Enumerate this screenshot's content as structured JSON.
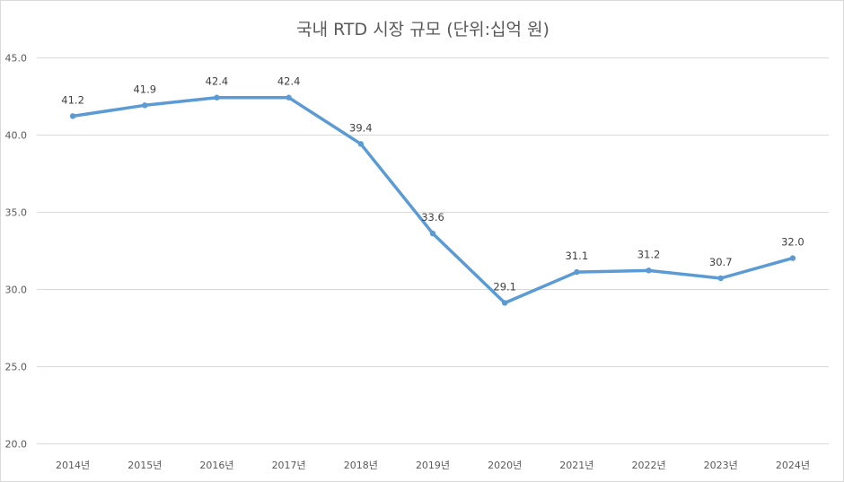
{
  "chart_data": {
    "type": "line",
    "title": "국내 RTD 시장 규모 (단위:십억 원)",
    "categories": [
      "2014년",
      "2015년",
      "2016년",
      "2017년",
      "2018년",
      "2019년",
      "2020년",
      "2021년",
      "2022년",
      "2023년",
      "2024년"
    ],
    "series": [
      {
        "values": [
          41.2,
          41.9,
          42.4,
          42.4,
          39.4,
          33.6,
          29.1,
          31.1,
          31.2,
          30.7,
          32.0
        ],
        "color": "#5b9bd5"
      }
    ],
    "data_labels": [
      "41.2",
      "41.9",
      "42.4",
      "42.4",
      "39.4",
      "33.6",
      "29.1",
      "31.1",
      "31.2",
      "30.7",
      "32.0"
    ],
    "ylim": [
      20.0,
      45.0
    ],
    "yticks": [
      20.0,
      25.0,
      30.0,
      35.0,
      40.0,
      45.0
    ],
    "ytick_labels": [
      "20.0",
      "25.0",
      "30.0",
      "35.0",
      "40.0",
      "45.0"
    ],
    "grid": true,
    "legend": "none",
    "xlabel": "",
    "ylabel": ""
  }
}
